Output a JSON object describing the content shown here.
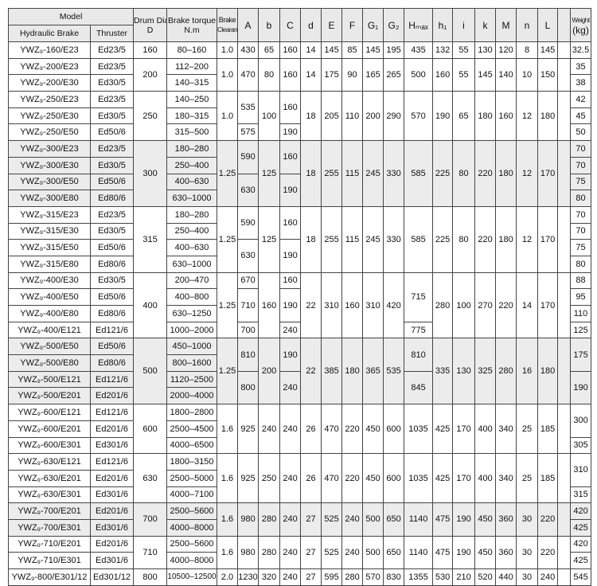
{
  "header": {
    "model": "Model",
    "hydraulic_brake": "Hydraulic Brake",
    "thruster": "Thruster",
    "drum_dia": "Drum Dia.",
    "drum_dia_sym": "D",
    "brake_torque": "Brake torque",
    "brake_torque_unit": "N.m",
    "brake": "Brake",
    "clearance": "Clearance",
    "cols": [
      "A",
      "b",
      "C",
      "d",
      "E",
      "F",
      "G₁",
      "G₂",
      "Hₘₐₓ",
      "h₁",
      "i",
      "k",
      "M",
      "n",
      "L",
      ""
    ],
    "weight": "Weight",
    "weight_unit": "(kg)"
  },
  "groups": [
    {
      "shaded": false,
      "rows": [
        [
          "YWZ₉-160/E23",
          "Ed23/5",
          "160",
          "80–160",
          "1.0",
          "430",
          "65",
          "160",
          "14",
          "145",
          "85",
          "145",
          "195",
          "435",
          "132",
          "55",
          "130",
          "120",
          "8",
          "145",
          "",
          "32.5"
        ]
      ]
    },
    {
      "shaded": false,
      "rows": [
        [
          "YWZ₉-200/E23",
          "Ed23/5",
          "200",
          "112–200",
          "1.0",
          "470",
          "80",
          "160",
          "14",
          "175",
          "90",
          "165",
          "265",
          "500",
          "160",
          "55",
          "145",
          "140",
          "10",
          "150",
          "",
          "35"
        ],
        [
          "YWZ₉-200/E30",
          "Ed30/5",
          null,
          "140–315",
          null,
          null,
          null,
          null,
          null,
          null,
          null,
          null,
          null,
          null,
          null,
          null,
          null,
          null,
          null,
          null,
          null,
          "38"
        ]
      ]
    },
    {
      "shaded": false,
      "rows": [
        [
          "YWZ₉-250/E23",
          "Ed23/5",
          "250",
          "140–250",
          "1.0",
          "535",
          "100",
          "160",
          "18",
          "205",
          "110",
          "200",
          "290",
          "570",
          "190",
          "65",
          "180",
          "160",
          "12",
          "180",
          "",
          "42"
        ],
        [
          "YWZ₉-250/E30",
          "Ed30/5",
          null,
          "180–315",
          null,
          null,
          null,
          null,
          null,
          null,
          null,
          null,
          null,
          null,
          null,
          null,
          null,
          null,
          null,
          null,
          null,
          "45"
        ],
        [
          "YWZ₉-250/E50",
          "Ed50/6",
          null,
          "315–500",
          null,
          "575",
          null,
          "190",
          null,
          null,
          null,
          null,
          null,
          null,
          null,
          null,
          null,
          null,
          null,
          null,
          null,
          "50"
        ]
      ]
    },
    {
      "shaded": true,
      "rows": [
        [
          "YWZ₉-300/E23",
          "Ed23/5",
          "300",
          "180–280",
          "1.25",
          "590",
          "125",
          "160",
          "18",
          "255",
          "115",
          "245",
          "330",
          "585",
          "225",
          "80",
          "220",
          "180",
          "12",
          "170",
          "",
          "70"
        ],
        [
          "YWZ₉-300/E30",
          "Ed30/5",
          null,
          "250–400",
          null,
          null,
          null,
          null,
          null,
          null,
          null,
          null,
          null,
          null,
          null,
          null,
          null,
          null,
          null,
          null,
          null,
          "70"
        ],
        [
          "YWZ₉-300/E50",
          "Ed50/6",
          null,
          "400–630",
          null,
          "630",
          null,
          "190",
          null,
          null,
          null,
          null,
          null,
          null,
          null,
          null,
          null,
          null,
          null,
          null,
          null,
          "75"
        ],
        [
          "YWZ₉-300/E80",
          "Ed80/6",
          null,
          "630–1000",
          null,
          null,
          null,
          null,
          null,
          null,
          null,
          null,
          null,
          null,
          null,
          null,
          null,
          null,
          null,
          null,
          null,
          "80"
        ]
      ]
    },
    {
      "shaded": false,
      "rows": [
        [
          "YWZ₉-315/E23",
          "Ed23/5",
          "315",
          "180–280",
          "1.25",
          "590",
          "125",
          "160",
          "18",
          "255",
          "115",
          "245",
          "330",
          "585",
          "225",
          "80",
          "220",
          "180",
          "12",
          "170",
          "",
          "70"
        ],
        [
          "YWZ₉-315/E30",
          "Ed30/5",
          null,
          "250–400",
          null,
          null,
          null,
          null,
          null,
          null,
          null,
          null,
          null,
          null,
          null,
          null,
          null,
          null,
          null,
          null,
          null,
          "70"
        ],
        [
          "YWZ₉-315/E50",
          "Ed50/6",
          null,
          "400–630",
          null,
          "630",
          null,
          "190",
          null,
          null,
          null,
          null,
          null,
          null,
          null,
          null,
          null,
          null,
          null,
          null,
          null,
          "75"
        ],
        [
          "YWZ₉-315/E80",
          "Ed80/6",
          null,
          "630–1000",
          null,
          null,
          null,
          null,
          null,
          null,
          null,
          null,
          null,
          null,
          null,
          null,
          null,
          null,
          null,
          null,
          null,
          "80"
        ]
      ]
    },
    {
      "shaded": false,
      "rows": [
        [
          "YWZ₉-400/E30",
          "Ed30/5",
          "400",
          "200–470",
          "1.25",
          "670",
          "160",
          "160",
          "22",
          "310",
          "160",
          "310",
          "420",
          "715",
          "280",
          "100",
          "270",
          "220",
          "14",
          "170",
          "",
          "88"
        ],
        [
          "YWZ₉-400/E50",
          "Ed50/6",
          null,
          "400–800",
          null,
          "710",
          null,
          "190",
          null,
          null,
          null,
          null,
          null,
          null,
          null,
          null,
          null,
          null,
          null,
          null,
          null,
          "95"
        ],
        [
          "YWZ₉-400/E80",
          "Ed80/6",
          null,
          "630–1250",
          null,
          null,
          null,
          null,
          null,
          null,
          null,
          null,
          null,
          null,
          null,
          null,
          null,
          null,
          null,
          null,
          null,
          "110"
        ],
        [
          "YWZ₉-400/E121",
          "Ed121/6",
          null,
          "1000–2000",
          null,
          "700",
          null,
          "240",
          null,
          null,
          null,
          null,
          null,
          "775",
          null,
          null,
          null,
          null,
          null,
          null,
          null,
          "125"
        ]
      ]
    },
    {
      "shaded": true,
      "rows": [
        [
          "YWZ₉-500/E50",
          "Ed50/6",
          "500",
          "450–1000",
          "1.25",
          "810",
          "200",
          "190",
          "22",
          "385",
          "180",
          "365",
          "535",
          "810",
          "335",
          "130",
          "325",
          "280",
          "16",
          "180",
          "",
          "175"
        ],
        [
          "YWZ₉-500/E80",
          "Ed80/6",
          null,
          "800–1600",
          null,
          null,
          null,
          null,
          null,
          null,
          null,
          null,
          null,
          null,
          null,
          null,
          null,
          null,
          null,
          null,
          null,
          null
        ],
        [
          "YWZ₉-500/E121",
          "Ed121/6",
          null,
          "1120–2500",
          null,
          "800",
          null,
          "240",
          null,
          null,
          null,
          null,
          null,
          "845",
          null,
          null,
          null,
          null,
          null,
          null,
          null,
          "190"
        ],
        [
          "YWZ₉-500/E201",
          "Ed201/6",
          null,
          "2000–4000",
          null,
          null,
          null,
          null,
          null,
          null,
          null,
          null,
          null,
          null,
          null,
          null,
          null,
          null,
          null,
          null,
          null,
          null
        ]
      ]
    },
    {
      "shaded": false,
      "rows": [
        [
          "YWZ₉-600/E121",
          "Ed121/6",
          "600",
          "1800–2800",
          "1.6",
          "925",
          "240",
          "240",
          "26",
          "470",
          "220",
          "450",
          "600",
          "1035",
          "425",
          "170",
          "400",
          "340",
          "25",
          "185",
          "",
          "300"
        ],
        [
          "YWZ₉-600/E201",
          "Ed201/6",
          null,
          "2500–4500",
          null,
          null,
          null,
          null,
          null,
          null,
          null,
          null,
          null,
          null,
          null,
          null,
          null,
          null,
          null,
          null,
          null,
          null
        ],
        [
          "YWZ₉-600/E301",
          "Ed301/6",
          null,
          "4000–6500",
          null,
          null,
          null,
          null,
          null,
          null,
          null,
          null,
          null,
          null,
          null,
          null,
          null,
          null,
          null,
          null,
          null,
          "305"
        ]
      ]
    },
    {
      "shaded": false,
      "rows": [
        [
          "YWZ₉-630/E121",
          "Ed121/6",
          "630",
          "1800–3150",
          "1.6",
          "925",
          "250",
          "240",
          "26",
          "470",
          "220",
          "450",
          "600",
          "1035",
          "425",
          "170",
          "400",
          "340",
          "25",
          "185",
          "",
          "310"
        ],
        [
          "YWZ₉-630/E201",
          "Ed201/6",
          null,
          "2500–5000",
          null,
          null,
          null,
          null,
          null,
          null,
          null,
          null,
          null,
          null,
          null,
          null,
          null,
          null,
          null,
          null,
          null,
          null
        ],
        [
          "YWZ₉-630/E301",
          "Ed301/6",
          null,
          "4000–7100",
          null,
          null,
          null,
          null,
          null,
          null,
          null,
          null,
          null,
          null,
          null,
          null,
          null,
          null,
          null,
          null,
          null,
          "315"
        ]
      ]
    },
    {
      "shaded": true,
      "rows": [
        [
          "YWZ₉-700/E201",
          "Ed201/6",
          "700",
          "2500–5600",
          "1.6",
          "980",
          "280",
          "240",
          "27",
          "525",
          "240",
          "500",
          "650",
          "1140",
          "475",
          "190",
          "450",
          "360",
          "30",
          "220",
          "",
          "420"
        ],
        [
          "YWZ₉-700/E301",
          "Ed301/6",
          null,
          "4000–8000",
          null,
          null,
          null,
          null,
          null,
          null,
          null,
          null,
          null,
          null,
          null,
          null,
          null,
          null,
          null,
          null,
          null,
          "425"
        ]
      ]
    },
    {
      "shaded": false,
      "rows": [
        [
          "YWZ₉-710/E201",
          "Ed201/6",
          "710",
          "2500–5600",
          "1.6",
          "980",
          "280",
          "240",
          "27",
          "525",
          "240",
          "500",
          "650",
          "1140",
          "475",
          "190",
          "450",
          "360",
          "30",
          "220",
          "",
          "420"
        ],
        [
          "YWZ₉-710/E301",
          "Ed301/6",
          null,
          "4000–8000",
          null,
          null,
          null,
          null,
          null,
          null,
          null,
          null,
          null,
          null,
          null,
          null,
          null,
          null,
          null,
          null,
          null,
          "425"
        ]
      ]
    },
    {
      "shaded": false,
      "rows": [
        [
          "YWZ₉-800/E301/12",
          "Ed301/12",
          "800",
          "10500–12500",
          "2.0",
          "1230",
          "320",
          "240",
          "27",
          "595",
          "280",
          "570",
          "830",
          "1355",
          "530",
          "210",
          "520",
          "440",
          "30",
          "240",
          "",
          "545"
        ]
      ]
    }
  ]
}
